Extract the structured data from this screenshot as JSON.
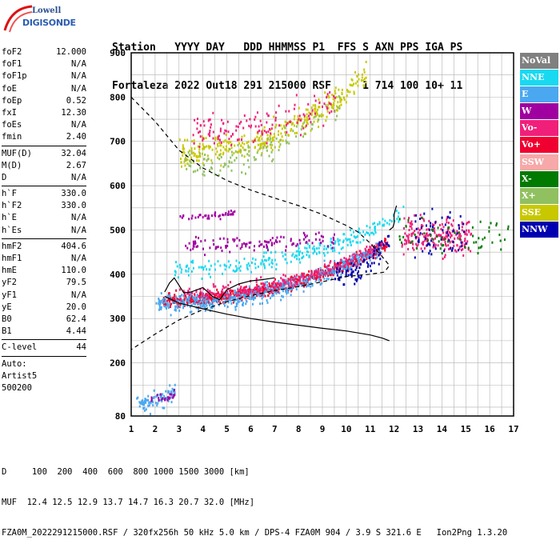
{
  "logo": {
    "line1": "Lowell",
    "line2": "DIGISONDE"
  },
  "header": {
    "row1": "Station   YYYY DAY   DDD HHMMSS P1  FFS S AXN PPS IGA PS",
    "row2": "Fortaleza 2022 Out18 291 215000 RSF     1 714 100 10+ 11"
  },
  "params": {
    "group1": [
      {
        "k": "foF2",
        "v": "12.000"
      },
      {
        "k": "foF1",
        "v": "N/A"
      },
      {
        "k": "foF1p",
        "v": "N/A"
      },
      {
        "k": "foE",
        "v": "N/A"
      },
      {
        "k": "foEp",
        "v": "0.52"
      },
      {
        "k": "fxI",
        "v": "12.30"
      },
      {
        "k": "foEs",
        "v": "N/A"
      },
      {
        "k": "fmin",
        "v": "2.40"
      }
    ],
    "group2": [
      {
        "k": "MUF(D)",
        "v": "32.04"
      },
      {
        "k": "M(D)",
        "v": "2.67"
      },
      {
        "k": "D",
        "v": "N/A"
      }
    ],
    "group3": [
      {
        "k": "h`F",
        "v": "330.0"
      },
      {
        "k": "h`F2",
        "v": "330.0"
      },
      {
        "k": "h`E",
        "v": "N/A"
      },
      {
        "k": "h`Es",
        "v": "N/A"
      }
    ],
    "group4": [
      {
        "k": "hmF2",
        "v": "404.6"
      },
      {
        "k": "hmF1",
        "v": "N/A"
      },
      {
        "k": "hmE",
        "v": "110.0"
      },
      {
        "k": "yF2",
        "v": "79.5"
      },
      {
        "k": "yF1",
        "v": "N/A"
      },
      {
        "k": "yE",
        "v": "20.0"
      },
      {
        "k": "B0",
        "v": "62.4"
      },
      {
        "k": "B1",
        "v": "4.44"
      }
    ],
    "group5": [
      {
        "k": "C-level",
        "v": "44"
      }
    ],
    "auto": [
      "Auto:",
      "Artist5",
      "500200"
    ]
  },
  "legend": [
    {
      "label": "NoVal",
      "color": "#808080",
      "text_color": "#ffffff"
    },
    {
      "label": "NNE",
      "color": "#19d9f0",
      "text_color": "#ffffff"
    },
    {
      "label": "E",
      "color": "#4aa8f0",
      "text_color": "#ffffff"
    },
    {
      "label": "W",
      "color": "#a000a0",
      "text_color": "#ffffff"
    },
    {
      "label": "Vo-",
      "color": "#f0207a",
      "text_color": "#ffffff"
    },
    {
      "label": "Vo+",
      "color": "#f00030",
      "text_color": "#ffffff"
    },
    {
      "label": "SSW",
      "color": "#f7a8a8",
      "text_color": "#ffffff"
    },
    {
      "label": "X-",
      "color": "#007a00",
      "text_color": "#ffffff"
    },
    {
      "label": "X+",
      "color": "#90c060",
      "text_color": "#ffffff"
    },
    {
      "label": "SSE",
      "color": "#c8c800",
      "text_color": "#ffffff"
    },
    {
      "label": "NNW",
      "color": "#0000b0",
      "text_color": "#ffffff"
    }
  ],
  "footer": {
    "d_row": "D     100  200  400  600  800 1000 1500 3000 [km]",
    "muf_row": "MUF  12.4 12.5 12.9 13.7 14.7 16.3 20.7 32.0 [MHz]",
    "file_row": "FZA0M_2022291215000.RSF / 320fx256h 50 kHz 5.0 km / DPS-4 FZA0M 904 / 3.9 S 321.6 E   Ion2Png 1.3.20"
  },
  "chart_data": {
    "type": "scatter",
    "xlim": [
      1,
      17
    ],
    "ylim": [
      80,
      900
    ],
    "x_ticks": [
      1,
      2,
      3,
      4,
      5,
      6,
      7,
      8,
      9,
      10,
      11,
      12,
      13,
      14,
      15,
      16,
      17
    ],
    "y_ticks": [
      80,
      200,
      300,
      400,
      500,
      600,
      700,
      800,
      900
    ],
    "grid": true,
    "ionogram_clusters": [
      {
        "name": "F2 trace O",
        "color": "#f00030",
        "x0": 2.3,
        "x1": 11.7,
        "y_start": 345,
        "y_end": 470,
        "n": 700,
        "spread": 14
      },
      {
        "name": "F2 trace E",
        "color": "#4aa8f0",
        "x0": 2.0,
        "x1": 11.5,
        "y_start": 335,
        "y_end": 465,
        "n": 500,
        "spread": 20
      },
      {
        "name": "F2 trace Vo-",
        "color": "#f0207a",
        "x0": 3.0,
        "x1": 11.5,
        "y_start": 360,
        "y_end": 470,
        "n": 250,
        "spread": 16
      },
      {
        "name": "spread F",
        "color": "#19d9f0",
        "x0": 2.8,
        "x1": 12.4,
        "y_start": 415,
        "y_end": 540,
        "n": 250,
        "spread": 20
      },
      {
        "name": "W echoes",
        "color": "#a000a0",
        "x0": 3.2,
        "x1": 9.5,
        "y_start": 470,
        "y_end": 480,
        "n": 120,
        "spread": 18
      },
      {
        "name": "multi hop W",
        "color": "#a000a0",
        "x0": 3.0,
        "x1": 5.5,
        "y_start": 530,
        "y_end": 545,
        "n": 40,
        "spread": 8
      },
      {
        "name": "2nd hop SSE",
        "color": "#c8c800",
        "x0": 3.0,
        "x1": 10.8,
        "y_start": 680,
        "y_end": 850,
        "n": 350,
        "spread": 30
      },
      {
        "name": "2nd hop Vo-",
        "color": "#f0207a",
        "x0": 3.5,
        "x1": 9.5,
        "y_start": 720,
        "y_end": 800,
        "n": 140,
        "spread": 40
      },
      {
        "name": "2nd hop X+",
        "color": "#90c060",
        "x0": 3.2,
        "x1": 9.8,
        "y_start": 650,
        "y_end": 790,
        "n": 120,
        "spread": 30
      },
      {
        "name": "high freq cluster",
        "color": "#f0207a",
        "x0": 12.3,
        "x1": 15.2,
        "y_start": 490,
        "y_end": 490,
        "n": 220,
        "spread": 40
      },
      {
        "name": "high freq NNW",
        "color": "#0000b0",
        "x0": 12.8,
        "x1": 15.0,
        "y_start": 500,
        "y_end": 500,
        "n": 60,
        "spread": 50
      },
      {
        "name": "high freq X-",
        "color": "#007a00",
        "x0": 12.1,
        "x1": 16.9,
        "y_start": 490,
        "y_end": 490,
        "n": 60,
        "spread": 40
      },
      {
        "name": "low E",
        "color": "#4aa8f0",
        "x0": 1.2,
        "x1": 2.8,
        "y_start": 110,
        "y_end": 140,
        "n": 80,
        "spread": 18
      },
      {
        "name": "low W",
        "color": "#a000a0",
        "x0": 1.8,
        "x1": 2.8,
        "y_start": 120,
        "y_end": 130,
        "n": 25,
        "spread": 12
      },
      {
        "name": "F2 NNW",
        "color": "#0000b0",
        "x0": 9.5,
        "x1": 11.8,
        "y_start": 400,
        "y_end": 480,
        "n": 80,
        "spread": 25
      }
    ],
    "profile_curve": [
      [
        1.0,
        800
      ],
      [
        2.0,
        745
      ],
      [
        3.0,
        680
      ],
      [
        4.0,
        640
      ],
      [
        5.0,
        612
      ],
      [
        6.0,
        590
      ],
      [
        7.0,
        572
      ],
      [
        8.0,
        555
      ],
      [
        9.0,
        535
      ],
      [
        10.0,
        510
      ],
      [
        10.5,
        495
      ],
      [
        11.0,
        470
      ],
      [
        11.5,
        440
      ],
      [
        11.8,
        420
      ],
      [
        11.6,
        405
      ],
      [
        11.0,
        400
      ],
      [
        10.0,
        395
      ],
      [
        9.0,
        383
      ],
      [
        8.0,
        372
      ],
      [
        7.0,
        363
      ],
      [
        6.0,
        352
      ],
      [
        5.0,
        338
      ],
      [
        4.0,
        320
      ],
      [
        3.0,
        297
      ],
      [
        2.0,
        265
      ],
      [
        1.0,
        230
      ]
    ],
    "trace_curve": [
      [
        2.4,
        350
      ],
      [
        3.0,
        335
      ],
      [
        4.0,
        322
      ],
      [
        5.0,
        310
      ],
      [
        6.0,
        300
      ],
      [
        7.0,
        292
      ],
      [
        8.0,
        285
      ],
      [
        9.0,
        278
      ],
      [
        10.0,
        272
      ],
      [
        11.0,
        263
      ],
      [
        11.5,
        256
      ],
      [
        11.8,
        250
      ],
      [
        11.95,
        244
      ],
      [
        12.0,
        235
      ],
      [
        12.0,
        226
      ],
      [
        12.0,
        216
      ],
      [
        12.05,
        205
      ],
      [
        12.1,
        195
      ]
    ],
    "manual_trace": [
      [
        2.4,
        360
      ],
      [
        2.6,
        380
      ],
      [
        2.8,
        392
      ],
      [
        3.0,
        375
      ],
      [
        3.2,
        358
      ],
      [
        3.5,
        360
      ],
      [
        4.0,
        370
      ],
      [
        4.4,
        350
      ],
      [
        4.7,
        342
      ],
      [
        5.0,
        365
      ],
      [
        5.5,
        378
      ],
      [
        6.0,
        385
      ],
      [
        6.5,
        388
      ],
      [
        7.0,
        392
      ]
    ]
  }
}
